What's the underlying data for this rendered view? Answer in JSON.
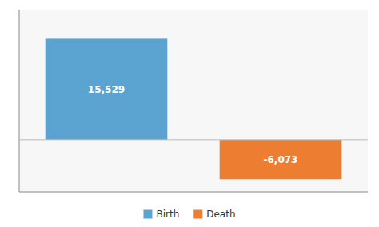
{
  "chart_data": {
    "type": "bar",
    "categories": [
      "Birth",
      "Death"
    ],
    "values": [
      15529,
      -6073
    ],
    "value_labels": [
      "15,529",
      "-6,073"
    ],
    "colors": [
      "#5BA3D0",
      "#ED7D31"
    ],
    "ylim": [
      -8000,
      20000
    ],
    "data_labels": true,
    "tick_labels": false,
    "grid": false,
    "legend": "bottom"
  }
}
